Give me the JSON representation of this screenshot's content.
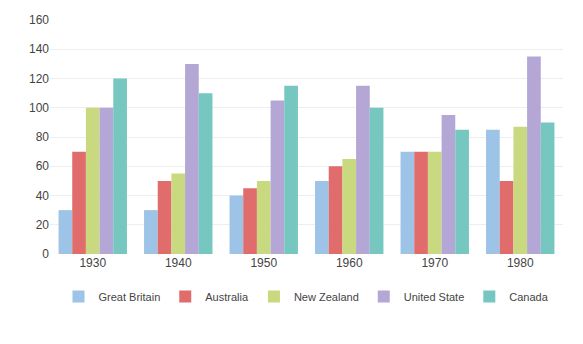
{
  "chart_data": {
    "type": "bar",
    "categories": [
      "1930",
      "1940",
      "1950",
      "1960",
      "1970",
      "1980"
    ],
    "series": [
      {
        "name": "Great Britain",
        "color": "#9dc3e6",
        "values": [
          30,
          30,
          40,
          50,
          70,
          85
        ]
      },
      {
        "name": "Australia",
        "color": "#e06c6c",
        "values": [
          70,
          50,
          45,
          60,
          70,
          50
        ]
      },
      {
        "name": "New Zealand",
        "color": "#c9d97f",
        "values": [
          100,
          55,
          50,
          65,
          70,
          87
        ]
      },
      {
        "name": "United State",
        "color": "#b4a7d6",
        "values": [
          100,
          130,
          105,
          115,
          95,
          135
        ]
      },
      {
        "name": "Canada",
        "color": "#76c7c0",
        "values": [
          120,
          110,
          115,
          100,
          85,
          90
        ]
      }
    ],
    "ylim": [
      0,
      160
    ],
    "yticks": [
      0,
      20,
      40,
      60,
      80,
      100,
      120,
      140,
      160
    ],
    "grid": true,
    "legend": "bottom"
  }
}
